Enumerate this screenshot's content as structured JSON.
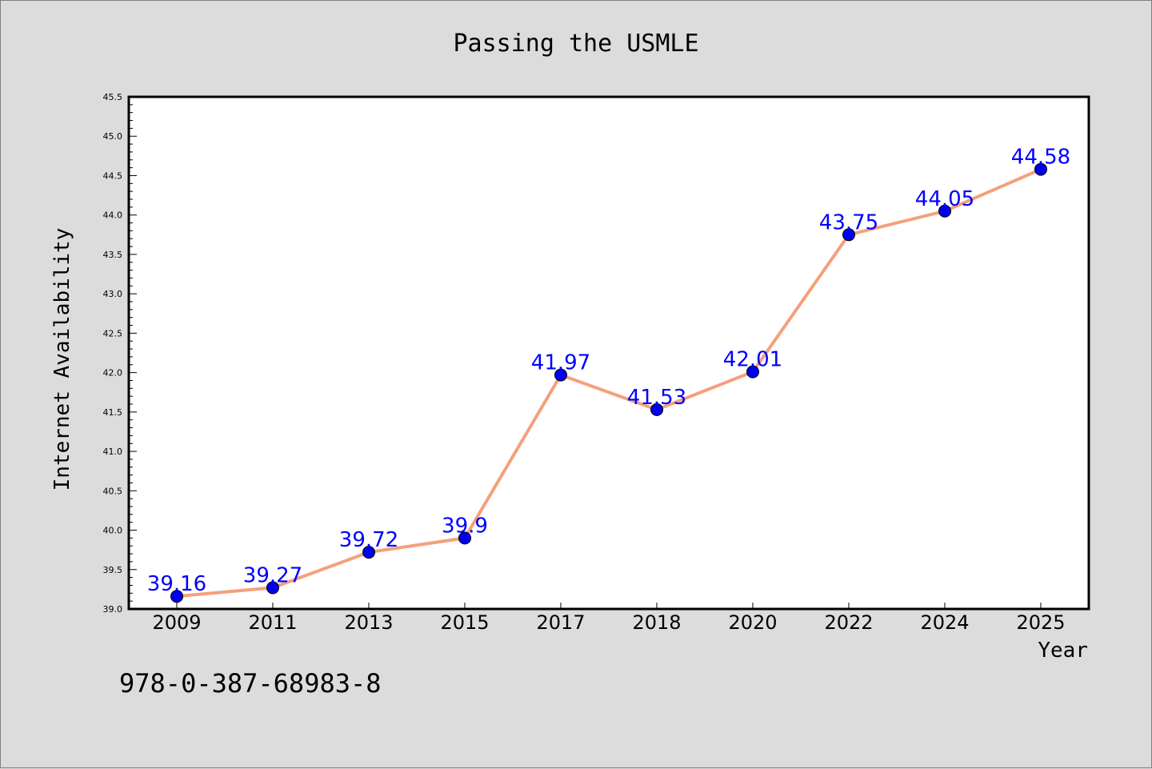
{
  "chart_data": {
    "type": "line",
    "title": "Passing the USMLE",
    "xlabel": "Year",
    "ylabel": "Internet Availability",
    "categories": [
      "2009",
      "2011",
      "2013",
      "2015",
      "2017",
      "2018",
      "2020",
      "2022",
      "2024",
      "2025"
    ],
    "series": [
      {
        "values": [
          39.16,
          39.27,
          39.72,
          39.9,
          41.97,
          41.53,
          42.01,
          43.75,
          44.05,
          44.58
        ],
        "data_labels": [
          "39.16",
          "39.27",
          "39.72",
          "39.9",
          "41.97",
          "41.53",
          "42.01",
          "43.75",
          "44.05",
          "44.58"
        ]
      }
    ],
    "ylim": [
      39.0,
      45.5
    ],
    "y_major_ticks": [
      "39.0",
      "39.5",
      "40.0",
      "40.5",
      "41.0",
      "41.5",
      "42.0",
      "42.5",
      "43.0",
      "43.5",
      "44.0",
      "44.5",
      "45.0",
      "45.5"
    ],
    "grid": false,
    "legend": "none",
    "colors": {
      "line": "#f4a07c",
      "marker": "#0000ee",
      "data_label": "#0000ff",
      "plot_background": "#ffffff",
      "figure_background": "#dcdcdc"
    }
  },
  "footer": {
    "code": "978-0-387-68983-8"
  }
}
